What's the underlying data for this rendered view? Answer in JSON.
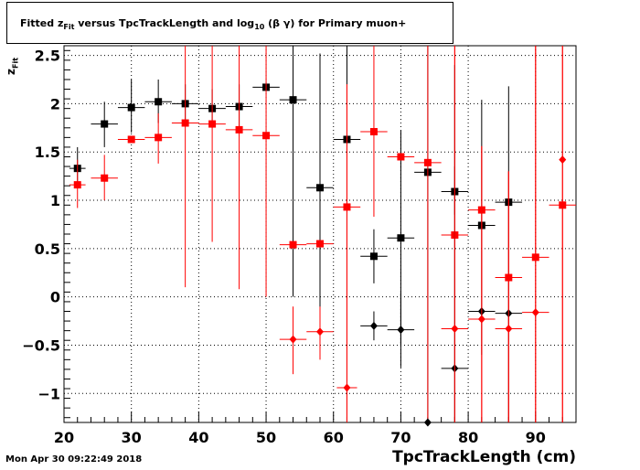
{
  "title": {
    "prefix": "Fitted  z",
    "sub1": "Fit",
    "middle": "  versus TpcTrackLength and log",
    "sub2": "10",
    "suffix": " (β γ) for Primary muon+"
  },
  "xlabel": "TpcTrackLength (cm)",
  "ylabel": {
    "main": "z",
    "sub": "Fit"
  },
  "datestamp": "Mon Apr 30 09:22:49 2018",
  "chart_data": {
    "type": "scatter",
    "xlim": [
      20,
      96
    ],
    "ylim": [
      -1.3,
      2.6
    ],
    "grid": true,
    "xticks": [
      20,
      30,
      40,
      50,
      60,
      70,
      80,
      90
    ],
    "xtick_labels": [
      "20",
      "30",
      "40",
      "50",
      "60",
      "70",
      "80",
      "90"
    ],
    "yticks": [
      -1,
      -0.5,
      0,
      0.5,
      1,
      1.5,
      2,
      2.5
    ],
    "ytick_labels": [
      "−1",
      "−0.5",
      "0",
      "0.5",
      "1",
      "1.5",
      "2",
      "2.5"
    ],
    "series": [
      {
        "color": "#000000",
        "marker": "square",
        "points": [
          {
            "x": 22,
            "y": 1.33,
            "ylo": 1.13,
            "yhi": 1.55,
            "xerr": 1.2
          },
          {
            "x": 26,
            "y": 1.79,
            "ylo": 1.55,
            "yhi": 2.02,
            "xerr": 2
          },
          {
            "x": 30,
            "y": 1.96,
            "ylo": 1.7,
            "yhi": 2.25,
            "xerr": 2
          },
          {
            "x": 34,
            "y": 2.02,
            "ylo": 1.8,
            "yhi": 2.25,
            "xerr": 2
          },
          {
            "x": 38,
            "y": 2.0,
            "ylo": 1.8,
            "yhi": 2.2,
            "xerr": 2
          },
          {
            "x": 42,
            "y": 1.95,
            "ylo": 1.75,
            "yhi": 2.15,
            "xerr": 2
          },
          {
            "x": 46,
            "y": 1.97,
            "ylo": 1.7,
            "yhi": 2.2,
            "xerr": 2
          },
          {
            "x": 50,
            "y": 2.17,
            "ylo": 2.17,
            "yhi": 2.17,
            "xerr": 2
          },
          {
            "x": 54,
            "y": 2.04,
            "ylo": 0.0,
            "yhi": 2.6,
            "xerr": 2
          },
          {
            "x": 58,
            "y": 1.13,
            "ylo": -0.3,
            "yhi": 2.52,
            "xerr": 2
          },
          {
            "x": 62,
            "y": 1.63,
            "ylo": -1.3,
            "yhi": 2.6,
            "xerr": 2
          },
          {
            "x": 66,
            "y": 0.42,
            "ylo": 0.14,
            "yhi": 0.7,
            "xerr": 2
          },
          {
            "x": 70,
            "y": 0.61,
            "ylo": -0.5,
            "yhi": 1.72,
            "xerr": 2
          },
          {
            "x": 74,
            "y": 1.29,
            "ylo": -1.3,
            "yhi": 2.6,
            "xerr": 2
          },
          {
            "x": 78,
            "y": 1.09,
            "ylo": 0.85,
            "yhi": 1.35,
            "xerr": 2
          },
          {
            "x": 82,
            "y": 0.74,
            "ylo": -0.6,
            "yhi": 2.04,
            "xerr": 2
          },
          {
            "x": 86,
            "y": 0.98,
            "ylo": -1.3,
            "yhi": 2.18,
            "xerr": 2
          }
        ]
      },
      {
        "color": "#ff0000",
        "marker": "square",
        "points": [
          {
            "x": 22,
            "y": 1.16,
            "ylo": 0.92,
            "yhi": 1.42,
            "xerr": 1.2
          },
          {
            "x": 26,
            "y": 1.23,
            "ylo": 1.0,
            "yhi": 1.47,
            "xerr": 2
          },
          {
            "x": 30,
            "y": 1.63,
            "ylo": 1.63,
            "yhi": 1.63,
            "xerr": 2
          },
          {
            "x": 34,
            "y": 1.65,
            "ylo": 1.38,
            "yhi": 1.9,
            "xerr": 2
          },
          {
            "x": 38,
            "y": 1.8,
            "ylo": 0.1,
            "yhi": 2.6,
            "xerr": 2
          },
          {
            "x": 42,
            "y": 1.79,
            "ylo": 0.57,
            "yhi": 2.6,
            "xerr": 2
          },
          {
            "x": 46,
            "y": 1.73,
            "ylo": 0.08,
            "yhi": 2.6,
            "xerr": 2
          },
          {
            "x": 50,
            "y": 1.67,
            "ylo": 0.0,
            "yhi": 2.6,
            "xerr": 2
          },
          {
            "x": 54,
            "y": 0.54,
            "ylo": 0.54,
            "yhi": 0.54,
            "xerr": 2
          },
          {
            "x": 58,
            "y": 0.55,
            "ylo": 0.55,
            "yhi": 0.55,
            "xerr": 2
          },
          {
            "x": 62,
            "y": 0.93,
            "ylo": -1.3,
            "yhi": 2.2,
            "xerr": 2
          },
          {
            "x": 66,
            "y": 1.71,
            "ylo": 0.83,
            "yhi": 2.6,
            "xerr": 2
          },
          {
            "x": 70,
            "y": 1.45,
            "ylo": 1.45,
            "yhi": 1.45,
            "xerr": 2
          },
          {
            "x": 74,
            "y": 1.39,
            "ylo": -1.3,
            "yhi": 2.6,
            "xerr": 2
          },
          {
            "x": 78,
            "y": 0.64,
            "ylo": -1.3,
            "yhi": 2.6,
            "xerr": 2
          },
          {
            "x": 82,
            "y": 0.9,
            "ylo": -1.3,
            "yhi": 1.56,
            "xerr": 2
          },
          {
            "x": 86,
            "y": 0.2,
            "ylo": -1.3,
            "yhi": 1.3,
            "xerr": 2
          },
          {
            "x": 90,
            "y": 0.41,
            "ylo": -1.3,
            "yhi": 2.6,
            "xerr": 2
          },
          {
            "x": 94,
            "y": 0.95,
            "ylo": -1.3,
            "yhi": 2.6,
            "xerr": 2
          }
        ]
      },
      {
        "color": "#000000",
        "marker": "diamond",
        "points": [
          {
            "x": 66,
            "y": -0.3,
            "ylo": -0.45,
            "yhi": -0.15,
            "xerr": 2
          },
          {
            "x": 70,
            "y": -0.34,
            "ylo": -0.73,
            "yhi": 0.05,
            "xerr": 2
          },
          {
            "x": 74,
            "y": -1.3,
            "ylo": -1.3,
            "yhi": -1.3,
            "xerr": 0
          },
          {
            "x": 78,
            "y": -0.74,
            "ylo": -1.3,
            "yhi": 2.4,
            "xerr": 2
          },
          {
            "x": 82,
            "y": -0.15,
            "ylo": -0.15,
            "yhi": -0.15,
            "xerr": 2
          },
          {
            "x": 86,
            "y": -0.17,
            "ylo": -0.17,
            "yhi": -0.17,
            "xerr": 2
          }
        ]
      },
      {
        "color": "#ff0000",
        "marker": "diamond",
        "points": [
          {
            "x": 54,
            "y": -0.44,
            "ylo": -0.8,
            "yhi": -0.1,
            "xerr": 2
          },
          {
            "x": 58,
            "y": -0.36,
            "ylo": -0.65,
            "yhi": -0.1,
            "xerr": 2
          },
          {
            "x": 62,
            "y": -0.94,
            "ylo": -1.3,
            "yhi": 2.2,
            "xerr": 1.5
          },
          {
            "x": 78,
            "y": -0.33,
            "ylo": -1.3,
            "yhi": 2.6,
            "xerr": 2
          },
          {
            "x": 82,
            "y": -0.23,
            "ylo": -1.3,
            "yhi": 1.56,
            "xerr": 2
          },
          {
            "x": 86,
            "y": -0.33,
            "ylo": -1.3,
            "yhi": 1.3,
            "xerr": 2
          },
          {
            "x": 90,
            "y": -0.16,
            "ylo": -1.3,
            "yhi": 2.6,
            "xerr": 2
          },
          {
            "x": 94,
            "y": 1.42,
            "ylo": -1.3,
            "yhi": 2.6,
            "xerr": 0
          }
        ]
      }
    ]
  }
}
